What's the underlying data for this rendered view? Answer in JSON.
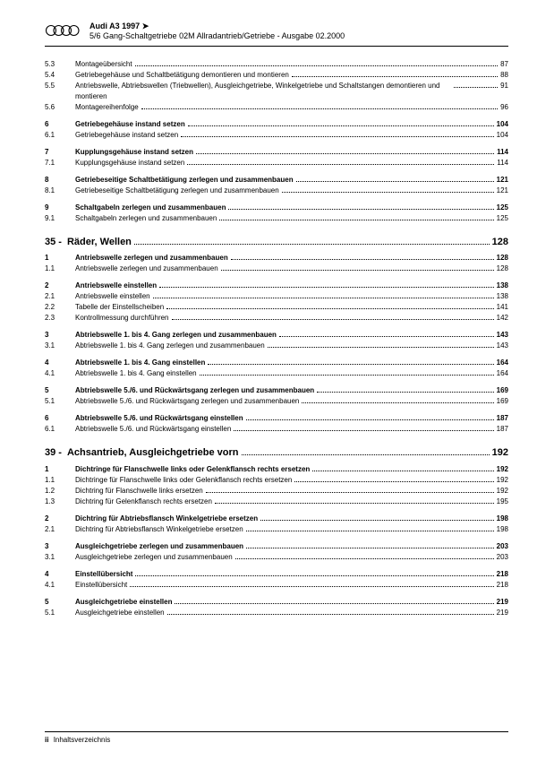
{
  "header": {
    "brand": "Audi A3 1997 ➤",
    "subtitle": "5/6 Gang-Schaltgetriebe 02M Allradantrieb/Getriebe - Ausgabe 02.2000"
  },
  "footer": {
    "pageNum": "ii",
    "label": "Inhaltsverzeichnis"
  },
  "sections": [
    {
      "type": "continued",
      "entries": [
        {
          "num": "5.3",
          "label": "Montageübersicht",
          "page": "87"
        },
        {
          "num": "5.4",
          "label": "Getriebegehäuse und Schaltbetätigung demontieren und montieren",
          "page": "88"
        },
        {
          "num": "5.5",
          "label": "Antriebswelle, Abtriebswellen (Triebwellen), Ausgleichgetriebe, Winkelgetriebe und Schaltstangen demontieren und montieren",
          "page": "91"
        },
        {
          "num": "5.6",
          "label": "Montagereihenfolge",
          "page": "96"
        },
        {
          "num": "6",
          "label": "Getriebegehäuse instand setzen",
          "page": "104",
          "bold": true,
          "mt": true
        },
        {
          "num": "6.1",
          "label": "Getriebegehäuse instand setzen",
          "page": "104"
        },
        {
          "num": "7",
          "label": "Kupplungsgehäuse instand setzen",
          "page": "114",
          "bold": true,
          "mt": true
        },
        {
          "num": "7.1",
          "label": "Kupplungsgehäuse instand setzen",
          "page": "114"
        },
        {
          "num": "8",
          "label": "Getriebeseitige Schaltbetätigung zerlegen und zusammenbauen",
          "page": "121",
          "bold": true,
          "mt": true
        },
        {
          "num": "8.1",
          "label": "Getriebeseitige Schaltbetätigung zerlegen und zusammenbauen",
          "page": "121"
        },
        {
          "num": "9",
          "label": "Schaltgabeln zerlegen und zusammenbauen",
          "page": "125",
          "bold": true,
          "mt": true
        },
        {
          "num": "9.1",
          "label": "Schaltgabeln zerlegen und zusammenbauen",
          "page": "125"
        }
      ]
    },
    {
      "type": "chapter",
      "num": "35 -",
      "label": "Räder, Wellen",
      "page": "128",
      "entries": [
        {
          "num": "1",
          "label": "Antriebswelle zerlegen und zusammenbauen",
          "page": "128",
          "bold": true
        },
        {
          "num": "1.1",
          "label": "Antriebswelle zerlegen und zusammenbauen",
          "page": "128"
        },
        {
          "num": "2",
          "label": "Antriebswelle einstellen",
          "page": "138",
          "bold": true,
          "mt": true
        },
        {
          "num": "2.1",
          "label": "Antriebswelle einstellen",
          "page": "138"
        },
        {
          "num": "2.2",
          "label": "Tabelle der Einstellscheiben",
          "page": "141"
        },
        {
          "num": "2.3",
          "label": "Kontrollmessung durchführen",
          "page": "142"
        },
        {
          "num": "3",
          "label": "Abtriebswelle 1. bis 4. Gang zerlegen und zusammenbauen",
          "page": "143",
          "bold": true,
          "mt": true
        },
        {
          "num": "3.1",
          "label": "Abtriebswelle 1. bis 4. Gang zerlegen und zusammenbauen",
          "page": "143"
        },
        {
          "num": "4",
          "label": "Abtriebswelle 1. bis 4. Gang einstellen",
          "page": "164",
          "bold": true,
          "mt": true
        },
        {
          "num": "4.1",
          "label": "Abtriebswelle 1. bis 4. Gang einstellen",
          "page": "164"
        },
        {
          "num": "5",
          "label": "Abtriebswelle 5./6. und Rückwärtsgang zerlegen und zusammenbauen",
          "page": "169",
          "bold": true,
          "mt": true
        },
        {
          "num": "5.1",
          "label": "Abtriebswelle 5./6. und Rückwärtsgang zerlegen und zusammenbauen",
          "page": "169"
        },
        {
          "num": "6",
          "label": "Abtriebswelle 5./6. und Rückwärtsgang einstellen",
          "page": "187",
          "bold": true,
          "mt": true
        },
        {
          "num": "6.1",
          "label": "Abtriebswelle 5./6. und Rückwärtsgang einstellen",
          "page": "187"
        }
      ]
    },
    {
      "type": "chapter",
      "num": "39 -",
      "label": "Achsantrieb, Ausgleichgetriebe vorn",
      "page": "192",
      "entries": [
        {
          "num": "1",
          "label": "Dichtringe für Flanschwelle links oder Gelenkflansch rechts ersetzen",
          "page": "192",
          "bold": true
        },
        {
          "num": "1.1",
          "label": "Dichtringe für Flanschwelle links oder Gelenkflansch rechts ersetzen",
          "page": "192"
        },
        {
          "num": "1.2",
          "label": "Dichtring für Flanschwelle links ersetzen",
          "page": "192"
        },
        {
          "num": "1.3",
          "label": "Dichtring für Gelenkflansch rechts ersetzen",
          "page": "195"
        },
        {
          "num": "2",
          "label": "Dichtring für Abtriebsflansch Winkelgetriebe ersetzen",
          "page": "198",
          "bold": true,
          "mt": true
        },
        {
          "num": "2.1",
          "label": "Dichtring für Abtriebsflansch Winkelgetriebe ersetzen",
          "page": "198"
        },
        {
          "num": "3",
          "label": "Ausgleichgetriebe zerlegen und zusammenbauen",
          "page": "203",
          "bold": true,
          "mt": true
        },
        {
          "num": "3.1",
          "label": "Ausgleichgetriebe zerlegen und zusammenbauen",
          "page": "203"
        },
        {
          "num": "4",
          "label": "Einstellübersicht",
          "page": "218",
          "bold": true,
          "mt": true
        },
        {
          "num": "4.1",
          "label": "Einstellübersicht",
          "page": "218"
        },
        {
          "num": "5",
          "label": "Ausgleichgetriebe einstellen",
          "page": "219",
          "bold": true,
          "mt": true
        },
        {
          "num": "5.1",
          "label": "Ausgleichgetriebe einstellen",
          "page": "219"
        }
      ]
    }
  ]
}
